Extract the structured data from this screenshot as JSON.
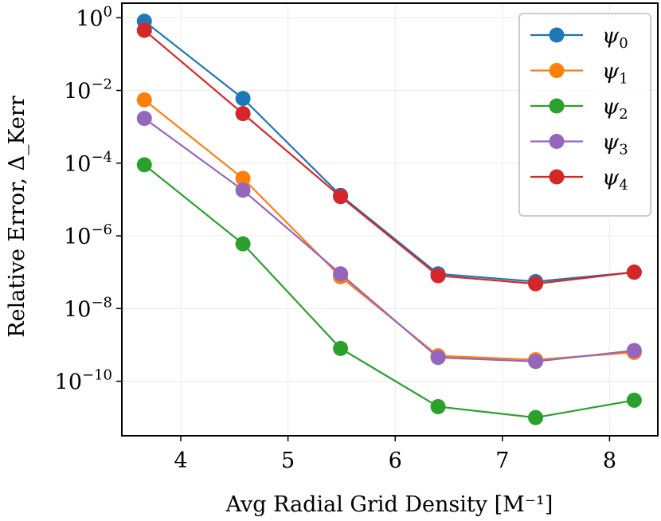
{
  "chart_data": {
    "type": "line",
    "xlabel": "Avg Radial Grid Density [M⁻¹]",
    "ylabel": "Relative Error, Δ_Kerr",
    "yscale": "log",
    "xlim": [
      3.45,
      8.45
    ],
    "ylim_exp": [
      -11.5,
      0.4
    ],
    "x_ticks": [
      4,
      5,
      6,
      7,
      8
    ],
    "y_tick_exponents": [
      0,
      -2,
      -4,
      -6,
      -8,
      -10
    ],
    "y_tick_base": "10",
    "grid": true,
    "legend_position": "top-right",
    "x": [
      3.66,
      4.58,
      5.49,
      6.4,
      7.31,
      8.23
    ],
    "series": [
      {
        "name": "ψ0",
        "symbol": "ψ",
        "sub": "0",
        "color": "#1f77b4",
        "values": [
          0.8,
          0.006,
          1.3e-05,
          9e-08,
          5.5e-08,
          1e-07
        ]
      },
      {
        "name": "ψ1",
        "symbol": "ψ",
        "sub": "1",
        "color": "#ff7f0e",
        "values": [
          0.0055,
          3.8e-05,
          7.5e-08,
          5e-10,
          3.9e-10,
          6.2e-10
        ]
      },
      {
        "name": "ψ2",
        "symbol": "ψ",
        "sub": "2",
        "color": "#2ca02c",
        "values": [
          9e-05,
          6e-07,
          8e-10,
          2e-11,
          1e-11,
          3e-11
        ]
      },
      {
        "name": "ψ3",
        "symbol": "ψ",
        "sub": "3",
        "color": "#9467bd",
        "values": [
          0.0017,
          1.8e-05,
          9e-08,
          4.5e-10,
          3.5e-10,
          7e-10
        ]
      },
      {
        "name": "ψ4",
        "symbol": "ψ",
        "sub": "4",
        "color": "#d62728",
        "values": [
          0.45,
          0.0023,
          1.2e-05,
          8e-08,
          4.8e-08,
          1e-07
        ]
      }
    ]
  }
}
